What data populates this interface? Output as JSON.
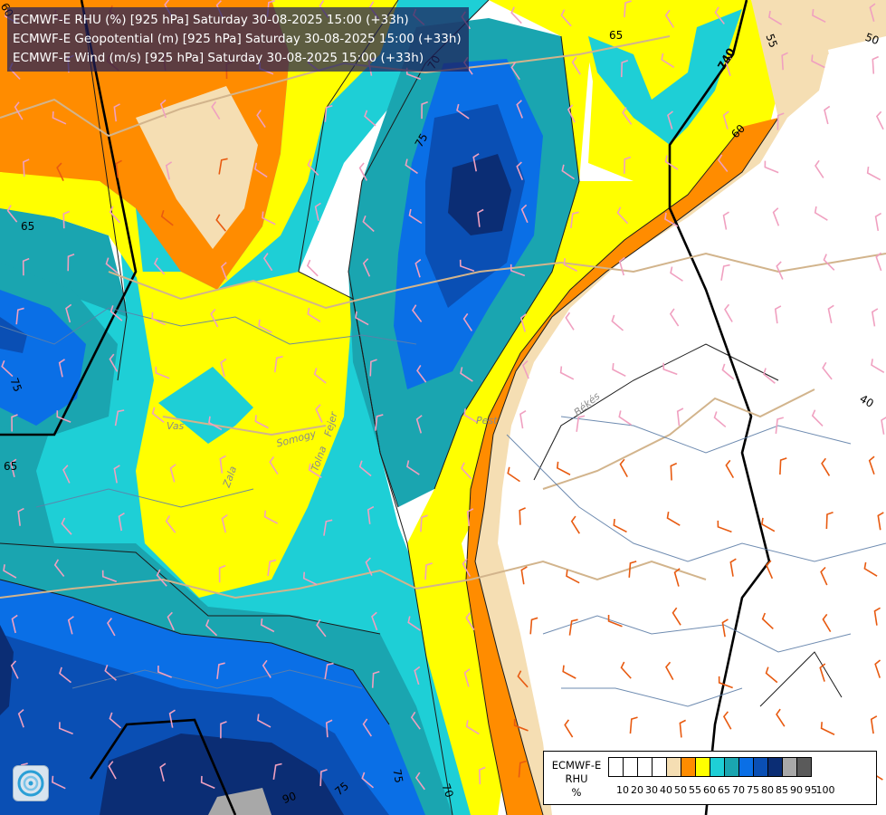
{
  "header": {
    "rhu_title": "ECMWF-E RHU (%) [925 hPa] Saturday 30-08-2025 15:00 (+33h)",
    "geo_title": "ECMWF-E Geopotential (m) [925 hPa] Saturday 30-08-2025 15:00 (+33h)",
    "wind_title": "ECMWF-E Wind (m/s) [925 hPa] Saturday 30-08-2025 15:00 (+33h)"
  },
  "scale": {
    "model": "ECMWF-E",
    "variable": "RHU",
    "unit": "%",
    "ticks": [
      "10",
      "20",
      "30",
      "40",
      "50",
      "55",
      "60",
      "65",
      "70",
      "75",
      "80",
      "85",
      "90",
      "95",
      "100"
    ],
    "colors": [
      "#ffffff",
      "#ffffff",
      "#ffffff",
      "#ffffff",
      "#f5deb3",
      "#ff8c00",
      "#ffff00",
      "#1ecfd6",
      "#1aa5b0",
      "#0a6fe6",
      "#0a4fb4",
      "#0b2d74",
      "#a8a8a8",
      "#5a5a5a"
    ]
  },
  "places": {
    "somogy": "Somogy",
    "tolna": "Tolna",
    "fejer": "Fejer",
    "zala": "Zala",
    "pest": "Pest",
    "bekes": "Békés",
    "vas": "Vas"
  },
  "contour_labels": {
    "c65a": "65",
    "c70a": "70",
    "c75a": "75",
    "c65b": "65",
    "c60a": "60",
    "c55a": "55",
    "c50a": "50",
    "c40a": "40",
    "c75b": "75",
    "c70b": "70",
    "c75c": "75",
    "c740": "740",
    "c60b": "60",
    "c75d": "75",
    "c90": "90",
    "c65c": "65"
  },
  "colors": {
    "white": "#ffffff",
    "tan": "#f5deb3",
    "orange": "#ff8c00",
    "yellow": "#ffff00",
    "cyan": "#1ecfd6",
    "teal": "#1aa5b0",
    "blue": "#0a6fe6",
    "darkblue": "#0a4fb4",
    "navy": "#0b2d74",
    "gray": "#a8a8a8"
  },
  "icons": {
    "logo": "ecmwf-logo-icon"
  }
}
